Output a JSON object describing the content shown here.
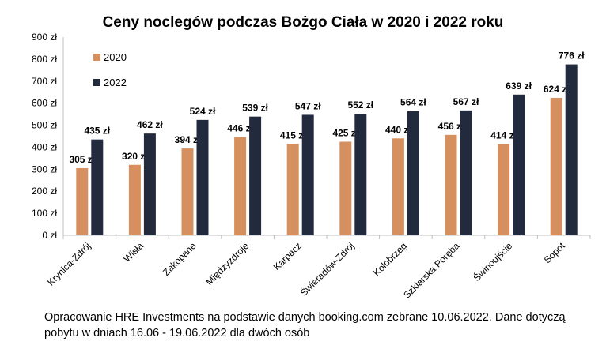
{
  "chart_data": {
    "type": "bar",
    "title": "Ceny noclegów podczas Bożgo Ciała w 2020 i 2022 roku",
    "categories": [
      "Krynica-Zdrój",
      "Wisła",
      "Zakopane",
      "Międzyzdroje",
      "Karpacz",
      "Świeradów-Zdrój",
      "Kołobrzeg",
      "Szklarska Poręba",
      "Świnoujście",
      "Sopot"
    ],
    "series": [
      {
        "name": "2020",
        "color": "#d6905f",
        "values": [
          305,
          320,
          394,
          446,
          415,
          425,
          440,
          456,
          414,
          624
        ],
        "labels": [
          "305 zł",
          "320 zł",
          "394 zł",
          "446 zł",
          "415 zł",
          "425 zł",
          "440 zł",
          "456 zł",
          "414 zł",
          "624 zł"
        ]
      },
      {
        "name": "2022",
        "color": "#222a3d",
        "values": [
          435,
          462,
          524,
          539,
          547,
          552,
          564,
          567,
          639,
          776
        ],
        "labels": [
          "435 zł",
          "462 zł",
          "524 zł",
          "539 zł",
          "547 zł",
          "552 zł",
          "564 zł",
          "567 zł",
          "639 zł",
          "776 zł"
        ]
      }
    ],
    "yticks": [
      "0 zł",
      "100 zł",
      "200 zł",
      "300 zł",
      "400 zł",
      "500 zł",
      "600 zł",
      "700 zł",
      "800 zł",
      "900 zł"
    ],
    "ylim": [
      0,
      900
    ],
    "grid": false,
    "legend_position": "top-left"
  },
  "footnote": {
    "line1": "Opracowanie HRE Investments na podstawie danych booking.com zebrane 10.06.2022. Dane dotyczą",
    "line2": "pobytu w dniach 16.06 - 19.06.2022 dla dwóch osób"
  }
}
